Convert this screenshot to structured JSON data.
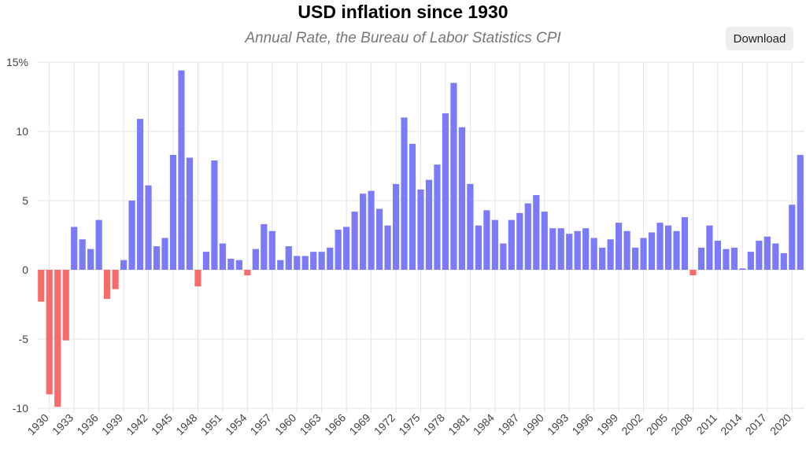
{
  "header": {
    "title": "USD inflation since 1930",
    "subtitle": "Annual Rate, the Bureau of Labor Statistics CPI",
    "download_label": "Download"
  },
  "chart_data": {
    "type": "bar",
    "title": "USD inflation since 1930",
    "subtitle": "Annual Rate, the Bureau of Labor Statistics CPI",
    "xlabel": "",
    "ylabel": "",
    "ylim": [
      -10,
      15
    ],
    "y_ticks": [
      {
        "value": 15,
        "label": "15%"
      },
      {
        "value": 10,
        "label": "10"
      },
      {
        "value": 5,
        "label": "5"
      },
      {
        "value": 0,
        "label": "0"
      },
      {
        "value": -5,
        "label": "-5"
      },
      {
        "value": -10,
        "label": "-10"
      }
    ],
    "x_tick_labels": [
      "1930",
      "1933",
      "1936",
      "1939",
      "1942",
      "1945",
      "1948",
      "1951",
      "1954",
      "1957",
      "1960",
      "1963",
      "1966",
      "1969",
      "1972",
      "1975",
      "1978",
      "1981",
      "1984",
      "1987",
      "1990",
      "1993",
      "1996",
      "1999",
      "2002",
      "2005",
      "2008",
      "2011",
      "2014",
      "2017",
      "2020"
    ],
    "grid": true,
    "positive_color": "#7b7bfa",
    "negative_color": "#f96b6b",
    "categories": [
      1929,
      1930,
      1931,
      1932,
      1933,
      1934,
      1935,
      1936,
      1937,
      1938,
      1939,
      1940,
      1941,
      1942,
      1943,
      1944,
      1945,
      1946,
      1947,
      1948,
      1949,
      1950,
      1951,
      1952,
      1953,
      1954,
      1955,
      1956,
      1957,
      1958,
      1959,
      1960,
      1961,
      1962,
      1963,
      1964,
      1965,
      1966,
      1967,
      1968,
      1969,
      1970,
      1971,
      1972,
      1973,
      1974,
      1975,
      1976,
      1977,
      1978,
      1979,
      1980,
      1981,
      1982,
      1983,
      1984,
      1985,
      1986,
      1987,
      1988,
      1989,
      1990,
      1991,
      1992,
      1993,
      1994,
      1995,
      1996,
      1997,
      1998,
      1999,
      2000,
      2001,
      2002,
      2003,
      2004,
      2005,
      2006,
      2007,
      2008,
      2009,
      2010,
      2011,
      2012,
      2013,
      2014,
      2015,
      2016,
      2017,
      2018,
      2019,
      2020,
      2021
    ],
    "values": [
      -2.3,
      -9.0,
      -9.9,
      -5.1,
      3.1,
      2.2,
      1.5,
      3.6,
      -2.1,
      -1.4,
      0.7,
      5.0,
      10.9,
      6.1,
      1.7,
      2.3,
      8.3,
      14.4,
      8.1,
      -1.2,
      1.3,
      7.9,
      1.9,
      0.8,
      0.7,
      -0.4,
      1.5,
      3.3,
      2.8,
      0.7,
      1.7,
      1.0,
      1.0,
      1.3,
      1.3,
      1.6,
      2.9,
      3.1,
      4.2,
      5.5,
      5.7,
      4.4,
      3.2,
      6.2,
      11.0,
      9.1,
      5.8,
      6.5,
      7.6,
      11.3,
      13.5,
      10.3,
      6.2,
      3.2,
      4.3,
      3.6,
      1.9,
      3.6,
      4.1,
      4.8,
      5.4,
      4.2,
      3.0,
      3.0,
      2.6,
      2.8,
      3.0,
      2.3,
      1.6,
      2.2,
      3.4,
      2.8,
      1.6,
      2.3,
      2.7,
      3.4,
      3.2,
      2.8,
      3.8,
      -0.4,
      1.6,
      3.2,
      2.1,
      1.5,
      1.6,
      0.1,
      1.3,
      2.1,
      2.4,
      1.9,
      1.2,
      4.7,
      8.3
    ]
  }
}
